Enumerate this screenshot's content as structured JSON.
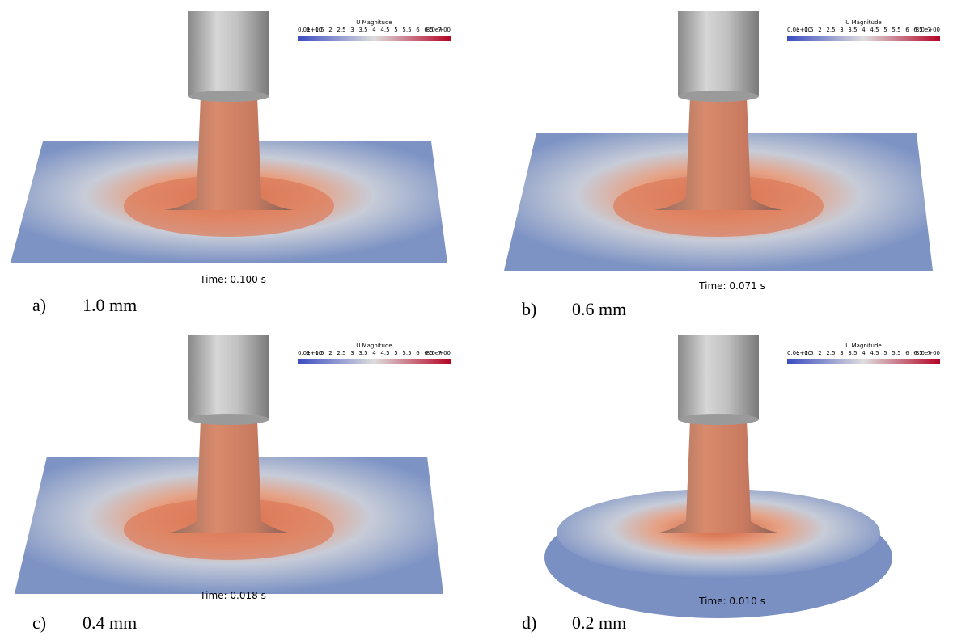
{
  "panels": [
    {
      "label": "a)",
      "caption": "1.0 mm",
      "time": "Time: 0.100 s",
      "legend": {
        "title": "U Magnitude",
        "ticks": [
          "0.0e+00",
          "1",
          "1.5",
          "2",
          "2.5",
          "3",
          "3.5",
          "4",
          "4.5",
          "5",
          "5.5",
          "6",
          "6.5",
          "7",
          "8.0e+00"
        ]
      }
    },
    {
      "label": "b)",
      "caption": "0.6 mm",
      "time": "Time: 0.071 s",
      "legend": {
        "title": "U Magnitude",
        "ticks": [
          "0.0e+00",
          "1",
          "1.5",
          "2",
          "2.5",
          "3",
          "3.5",
          "4",
          "4.5",
          "5",
          "5.5",
          "6",
          "6.5",
          "7",
          "8.0e+00"
        ]
      }
    },
    {
      "label": "c)",
      "caption": "0.4 mm",
      "time": "Time: 0.018 s",
      "legend": {
        "title": "U Magnitude",
        "ticks": [
          "0.0e+00",
          "1",
          "1.5",
          "2",
          "2.5",
          "3",
          "3.5",
          "4",
          "4.5",
          "5",
          "5.5",
          "6",
          "6.5",
          "7",
          "8.0e+00"
        ]
      }
    },
    {
      "label": "d)",
      "caption": "0.2 mm",
      "time": "Time: 0.010 s",
      "legend": {
        "title": "U Magnitude",
        "ticks": [
          "0.0e+00",
          "1",
          "1.5",
          "2",
          "2.5",
          "3",
          "3.5",
          "4",
          "4.5",
          "5",
          "5.5",
          "6",
          "6.5",
          "7",
          "8.0e+00"
        ]
      }
    }
  ]
}
